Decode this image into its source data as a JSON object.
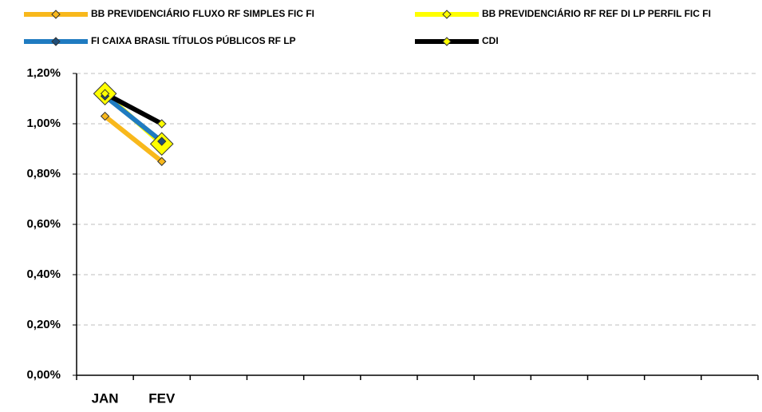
{
  "chart_data": {
    "type": "line",
    "categories": [
      "JAN",
      "FEV",
      null,
      null,
      null,
      null,
      null,
      null,
      null,
      null,
      null,
      null
    ],
    "series": [
      {
        "name": "BB PREVIDENCIÁRIO FLUXO RF SIMPLES FIC FI",
        "color": "#f8b81c",
        "marker_color": "#f8b81c",
        "values": [
          1.03,
          0.85,
          null,
          null,
          null,
          null,
          null,
          null,
          null,
          null,
          null,
          null
        ]
      },
      {
        "name": "BB PREVIDENCIÁRIO RF REF DI LP PERFIL FIC FI",
        "color": "#ffff00",
        "marker_color": "#ffff00",
        "values": [
          1.12,
          0.92,
          null,
          null,
          null,
          null,
          null,
          null,
          null,
          null,
          null,
          null
        ]
      },
      {
        "name": "FI CAIXA BRASIL TÍTULOS PÚBLICOS RF LP",
        "color": "#1f7bc1",
        "marker_color": "#1f4e79",
        "values": [
          1.11,
          0.93,
          null,
          null,
          null,
          null,
          null,
          null,
          null,
          null,
          null,
          null
        ]
      },
      {
        "name": "CDI",
        "color": "#000000",
        "marker_color": "#ffff00",
        "values": [
          1.12,
          1.0,
          null,
          null,
          null,
          null,
          null,
          null,
          null,
          null,
          null,
          null
        ]
      }
    ],
    "ylim": [
      0,
      1.2
    ],
    "yticks": [
      {
        "value": 0,
        "label": "0,00%"
      },
      {
        "value": 0.2,
        "label": "0,20%"
      },
      {
        "value": 0.4,
        "label": "0,40%"
      },
      {
        "value": 0.6,
        "label": "0,60%"
      },
      {
        "value": 0.8,
        "label": "0,80%"
      },
      {
        "value": 1.0,
        "label": "1,00%"
      },
      {
        "value": 1.2,
        "label": "1,20%"
      }
    ],
    "grid": true
  }
}
